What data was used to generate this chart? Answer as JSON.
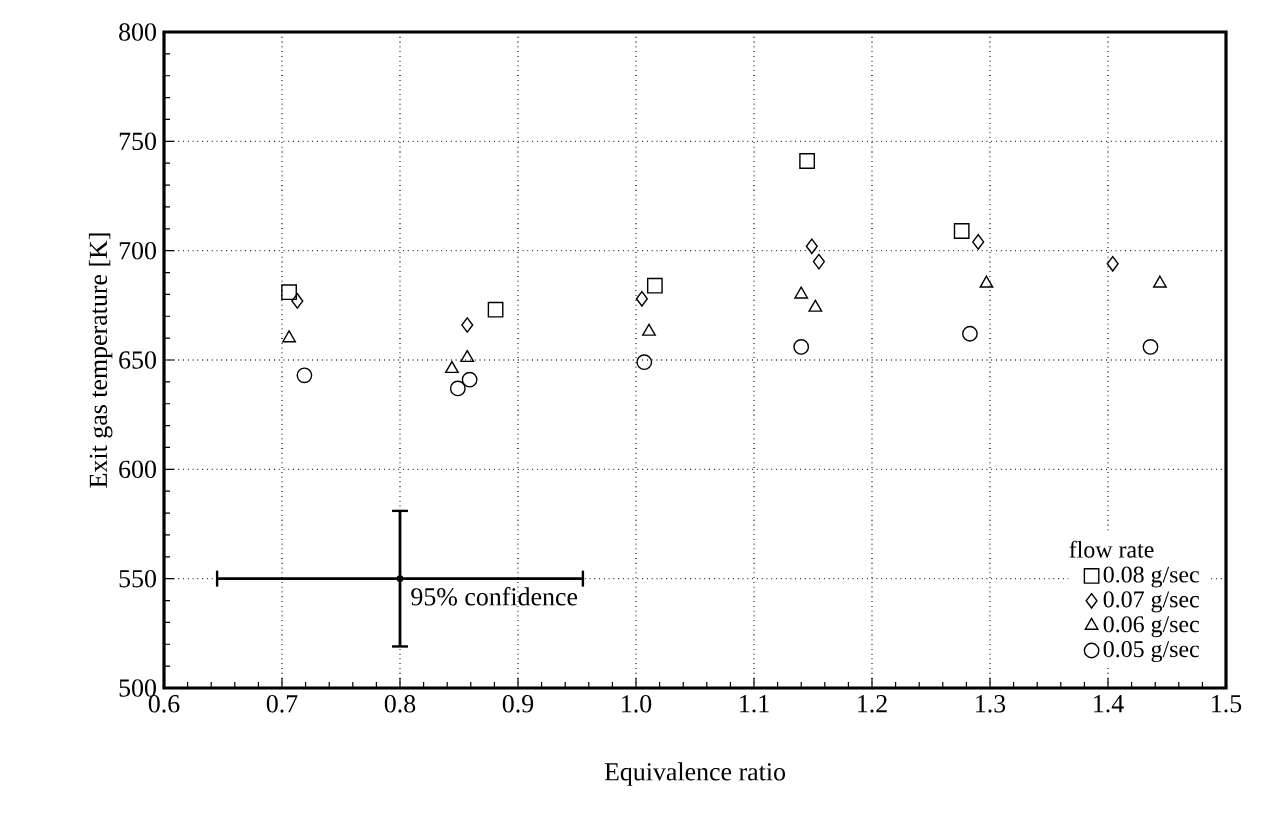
{
  "chart_data": {
    "type": "scatter",
    "xlabel": "Equivalence ratio",
    "ylabel": "Exit gas temperature [K]",
    "legend_title": "flow rate",
    "xlim": [
      0.6,
      1.5
    ],
    "ylim": [
      500,
      800
    ],
    "xticks": [
      0.6,
      0.7,
      0.8,
      0.9,
      {
        "value": 1,
        "label": "1.0"
      },
      1.1,
      1.2,
      1.3,
      1.4,
      1.5
    ],
    "yticks": [
      500,
      550,
      600,
      650,
      700,
      750,
      800
    ],
    "grid": true,
    "legend": "bottom right",
    "series": [
      {
        "name": "0.08 g/sec",
        "color": "#000000",
        "marker": "square",
        "x": [
          0.706,
          0.881,
          1.016,
          1.145,
          1.276
        ],
        "values": [
          681,
          673,
          684,
          741,
          709
        ]
      },
      {
        "name": "0.07 g/sec",
        "color": "#000000",
        "marker": "diamond",
        "x": [
          0.713,
          0.857,
          1.005,
          1.149,
          1.155,
          1.29,
          1.404
        ],
        "values": [
          677,
          666,
          678,
          702,
          695,
          704,
          694
        ]
      },
      {
        "name": "0.06 g/sec",
        "color": "#000000",
        "marker": "triangle",
        "x": [
          0.706,
          0.844,
          0.857,
          1.011,
          1.14,
          1.152,
          1.297,
          1.444
        ],
        "values": [
          660,
          646,
          651,
          663,
          680,
          674,
          685,
          685
        ]
      },
      {
        "name": "0.05 g/sec",
        "color": "#000000",
        "marker": "circle",
        "x": [
          0.719,
          0.849,
          0.859,
          1.007,
          1.14,
          1.283,
          1.436
        ],
        "values": [
          643,
          637,
          641,
          649,
          656,
          662,
          656
        ]
      },
      {
        "color": "#000000",
        "marker": "circle",
        "x": [
          0.8
        ],
        "values": [
          550
        ],
        "errors": [
          31
        ],
        "xerrors": [
          0.155
        ]
      }
    ],
    "annotations": [
      {
        "text": "95% confidence",
        "x": 0.8,
        "y": 550
      }
    ]
  }
}
